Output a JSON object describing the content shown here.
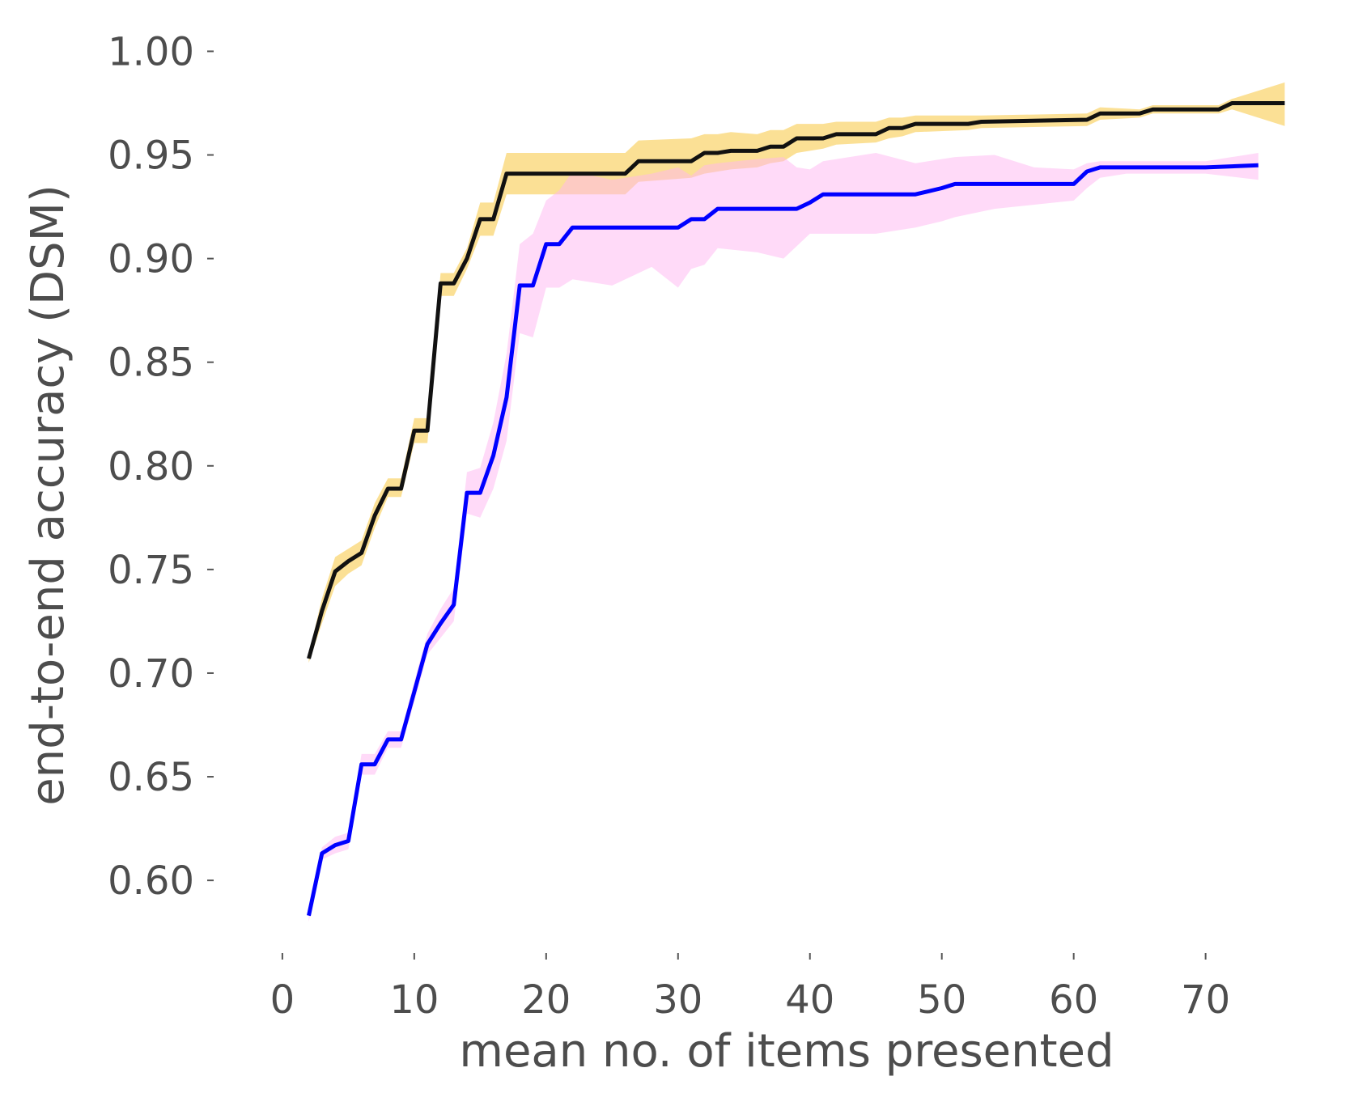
{
  "chart_data": {
    "type": "line",
    "xlabel": "mean no. of items presented",
    "ylabel": "end-to-end accuracy (DSM)",
    "xlim": [
      -3,
      78
    ],
    "ylim": [
      0.57,
      1.015
    ],
    "xticks": [
      0,
      10,
      20,
      30,
      40,
      50,
      60,
      70
    ],
    "yticks": [
      0.6,
      0.65,
      0.7,
      0.75,
      0.8,
      0.85,
      0.9,
      0.95,
      1.0
    ],
    "grid": false,
    "legend": "none",
    "series": [
      {
        "color": "#111111",
        "band_color": "#f7c22b",
        "x": [
          2,
          3,
          4,
          5,
          6,
          7,
          8,
          9,
          10,
          11,
          12,
          13,
          14,
          15,
          16,
          17,
          20,
          26,
          27,
          31,
          32,
          33,
          34,
          36,
          37,
          38,
          39,
          40,
          41,
          42,
          45,
          46,
          47,
          48,
          52,
          53,
          61,
          62,
          65,
          66,
          71,
          72,
          76
        ],
        "y": [
          0.707,
          0.73,
          0.749,
          0.754,
          0.758,
          0.776,
          0.789,
          0.789,
          0.817,
          0.817,
          0.888,
          0.888,
          0.9,
          0.919,
          0.919,
          0.941,
          0.941,
          0.941,
          0.947,
          0.947,
          0.951,
          0.951,
          0.952,
          0.952,
          0.954,
          0.954,
          0.958,
          0.958,
          0.958,
          0.96,
          0.96,
          0.963,
          0.963,
          0.965,
          0.965,
          0.966,
          0.967,
          0.97,
          0.97,
          0.972,
          0.972,
          0.975,
          0.975
        ],
        "band_low": [
          0.705,
          0.724,
          0.742,
          0.748,
          0.752,
          0.77,
          0.785,
          0.785,
          0.811,
          0.811,
          0.882,
          0.882,
          0.895,
          0.911,
          0.911,
          0.931,
          0.931,
          0.931,
          0.937,
          0.939,
          0.941,
          0.942,
          0.943,
          0.944,
          0.946,
          0.947,
          0.951,
          0.952,
          0.953,
          0.955,
          0.956,
          0.958,
          0.959,
          0.961,
          0.962,
          0.963,
          0.964,
          0.967,
          0.968,
          0.97,
          0.97,
          0.972,
          0.964
        ],
        "band_high": [
          0.709,
          0.736,
          0.756,
          0.76,
          0.764,
          0.782,
          0.794,
          0.794,
          0.823,
          0.823,
          0.893,
          0.893,
          0.905,
          0.927,
          0.927,
          0.951,
          0.951,
          0.951,
          0.957,
          0.958,
          0.96,
          0.96,
          0.961,
          0.96,
          0.962,
          0.962,
          0.965,
          0.965,
          0.965,
          0.966,
          0.966,
          0.968,
          0.968,
          0.969,
          0.969,
          0.969,
          0.97,
          0.973,
          0.972,
          0.974,
          0.974,
          0.977,
          0.985
        ]
      },
      {
        "color": "#0000ff",
        "band_color": "#ffb6f2",
        "x": [
          2,
          3,
          4,
          5,
          6,
          7,
          8,
          9,
          10,
          11,
          12,
          13,
          14,
          15,
          16,
          17,
          18,
          19,
          20,
          21,
          22,
          25,
          28,
          30,
          31,
          32,
          33,
          36,
          38,
          39,
          40,
          41,
          45,
          48,
          50,
          51,
          54,
          57,
          60,
          61,
          62,
          64,
          70,
          74
        ],
        "y": [
          0.583,
          0.613,
          0.617,
          0.619,
          0.656,
          0.656,
          0.668,
          0.668,
          0.691,
          0.714,
          0.724,
          0.733,
          0.787,
          0.787,
          0.805,
          0.833,
          0.887,
          0.887,
          0.907,
          0.907,
          0.915,
          0.915,
          0.915,
          0.915,
          0.919,
          0.919,
          0.924,
          0.924,
          0.924,
          0.924,
          0.927,
          0.931,
          0.931,
          0.931,
          0.934,
          0.936,
          0.936,
          0.936,
          0.936,
          0.942,
          0.944,
          0.944,
          0.944,
          0.945
        ],
        "band_low": [
          0.58,
          0.61,
          0.613,
          0.615,
          0.651,
          0.651,
          0.664,
          0.664,
          0.686,
          0.709,
          0.717,
          0.725,
          0.777,
          0.775,
          0.789,
          0.812,
          0.864,
          0.862,
          0.886,
          0.886,
          0.89,
          0.887,
          0.896,
          0.886,
          0.895,
          0.897,
          0.905,
          0.903,
          0.9,
          0.906,
          0.912,
          0.912,
          0.912,
          0.915,
          0.918,
          0.92,
          0.924,
          0.926,
          0.928,
          0.934,
          0.939,
          0.941,
          0.941,
          0.938
        ],
        "band_high": [
          0.586,
          0.616,
          0.621,
          0.623,
          0.661,
          0.661,
          0.672,
          0.672,
          0.696,
          0.719,
          0.731,
          0.741,
          0.797,
          0.799,
          0.821,
          0.854,
          0.907,
          0.912,
          0.928,
          0.933,
          0.942,
          0.938,
          0.941,
          0.944,
          0.94,
          0.945,
          0.946,
          0.948,
          0.949,
          0.944,
          0.943,
          0.947,
          0.951,
          0.946,
          0.948,
          0.949,
          0.95,
          0.944,
          0.943,
          0.946,
          0.947,
          0.947,
          0.947,
          0.951
        ]
      }
    ]
  }
}
